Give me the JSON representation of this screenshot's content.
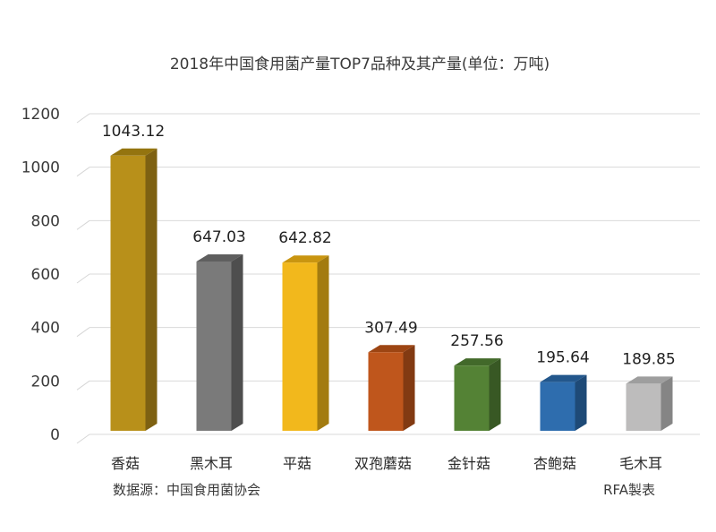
{
  "chart_data": {
    "type": "bar",
    "title": "2018年中国食用菌产量TOP7品种及其产量(单位：万吨)",
    "xlabel": "",
    "ylabel": "",
    "categories": [
      "香菇",
      "黑木耳",
      "平菇",
      "双孢蘑菇",
      "金针菇",
      "杏鲍菇",
      "毛木耳"
    ],
    "values": [
      1043.12,
      647.03,
      642.82,
      307.49,
      257.56,
      195.64,
      189.85
    ],
    "value_labels": [
      "1043.12",
      "647.03",
      "642.82",
      "307.49",
      "257.56",
      "195.64",
      "189.85"
    ],
    "ylim": [
      0,
      1200
    ],
    "yticks": [
      0,
      200,
      400,
      600,
      800,
      1000,
      1200
    ],
    "ytick_labels": [
      "0",
      "200",
      "400",
      "600",
      "800",
      "1000",
      "1200"
    ],
    "grid": true,
    "colors": [
      "#B8901A",
      "#7A7A7A",
      "#F2B81C",
      "#BF561C",
      "#548235",
      "#2E6DAE",
      "#BDBCBC"
    ],
    "side_colors": [
      "#7E6112",
      "#4E4E4E",
      "#A37B10",
      "#823A12",
      "#385824",
      "#1E4A77",
      "#858585"
    ],
    "top_colors": [
      "#94740F",
      "#5F5F5F",
      "#C99510",
      "#9D4513",
      "#42692A",
      "#23578C",
      "#9E9E9E"
    ],
    "source_note": "数据源：中国食用菌协会",
    "credit": "RFA製表"
  }
}
